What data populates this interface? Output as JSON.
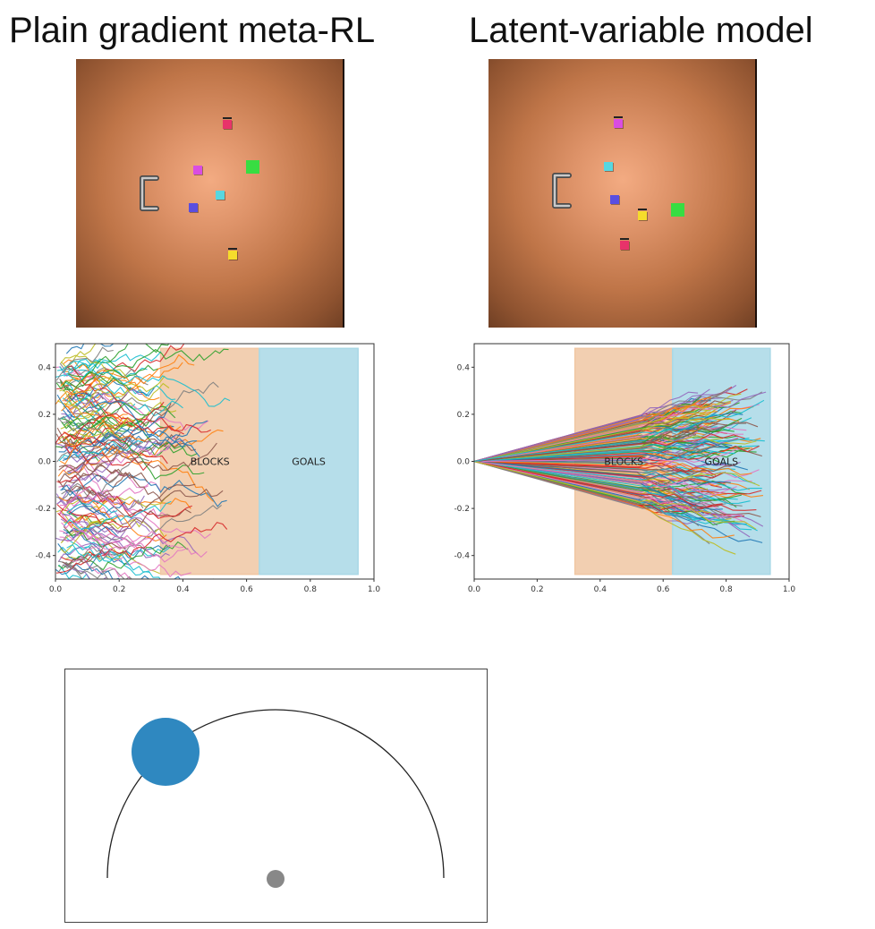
{
  "headings": {
    "left": "Plain gradient meta-RL",
    "right": "Latent-variable model"
  },
  "scenes": {
    "left": {
      "blocks": [
        {
          "color": "#e8336a",
          "tick": true
        },
        {
          "color": "#d94de2",
          "tick": false
        },
        {
          "color": "#57d7e0",
          "tick": false
        },
        {
          "color": "#5a4ee0",
          "tick": false
        },
        {
          "color": "#f5dc2c",
          "tick": true
        }
      ],
      "goal_color": "#38dd42",
      "gripper": "gripper-icon"
    },
    "right": {
      "blocks": [
        {
          "color": "#d94de2",
          "tick": true
        },
        {
          "color": "#57d7e0",
          "tick": false
        },
        {
          "color": "#5a4ee0",
          "tick": false
        },
        {
          "color": "#f5dc2c",
          "tick": true
        },
        {
          "color": "#e8336a",
          "tick": true
        }
      ],
      "goal_color": "#38dd42",
      "gripper": "gripper-icon"
    }
  },
  "chart_data": [
    {
      "type": "line",
      "title": "",
      "xlim": [
        0.0,
        1.0
      ],
      "ylim": [
        -0.5,
        0.5
      ],
      "x_ticks": [
        "0.0",
        "0.2",
        "0.4",
        "0.6",
        "0.8",
        "1.0"
      ],
      "y_ticks": [
        "-0.4",
        "-0.2",
        "0.0",
        "0.2",
        "0.4"
      ],
      "regions": [
        {
          "label": "BLOCKS",
          "x": [
            0.33,
            0.64
          ],
          "y": [
            -0.48,
            0.48
          ],
          "color": "#f0c7a3"
        },
        {
          "label": "GOALS",
          "x": [
            0.64,
            0.95
          ],
          "y": [
            -0.48,
            0.48
          ],
          "color": "#a9d8e6"
        }
      ],
      "trajectories": {
        "start_x_range": [
          0.0,
          0.05
        ],
        "end_x_range": [
          0.12,
          0.55
        ],
        "spread": "wide, random",
        "count": "many"
      }
    },
    {
      "type": "line",
      "title": "",
      "xlim": [
        0.0,
        1.0
      ],
      "ylim": [
        -0.5,
        0.5
      ],
      "x_ticks": [
        "0.0",
        "0.2",
        "0.4",
        "0.6",
        "0.8",
        "1.0"
      ],
      "y_ticks": [
        "-0.4",
        "-0.2",
        "0.0",
        "0.2",
        "0.4"
      ],
      "regions": [
        {
          "label": "BLOCKS",
          "x": [
            0.32,
            0.63
          ],
          "y": [
            -0.48,
            0.48
          ],
          "color": "#f0c7a3"
        },
        {
          "label": "GOALS",
          "x": [
            0.63,
            0.94
          ],
          "y": [
            -0.48,
            0.48
          ],
          "color": "#a9d8e6"
        }
      ],
      "trajectories": {
        "start": [
          0.0,
          0.0
        ],
        "end_x_range": [
          0.7,
          0.93
        ],
        "spread": "fan out from origin",
        "count": "many"
      }
    }
  ],
  "arc_panel": {
    "ball_color": "#2f88c0",
    "target_color": "#888888",
    "arc_color": "#222222"
  },
  "trajectory_palette": [
    "#1f77b4",
    "#ff7f0e",
    "#2ca02c",
    "#d62728",
    "#9467bd",
    "#8c564b",
    "#e377c2",
    "#7f7f7f",
    "#bcbd22",
    "#17becf"
  ]
}
